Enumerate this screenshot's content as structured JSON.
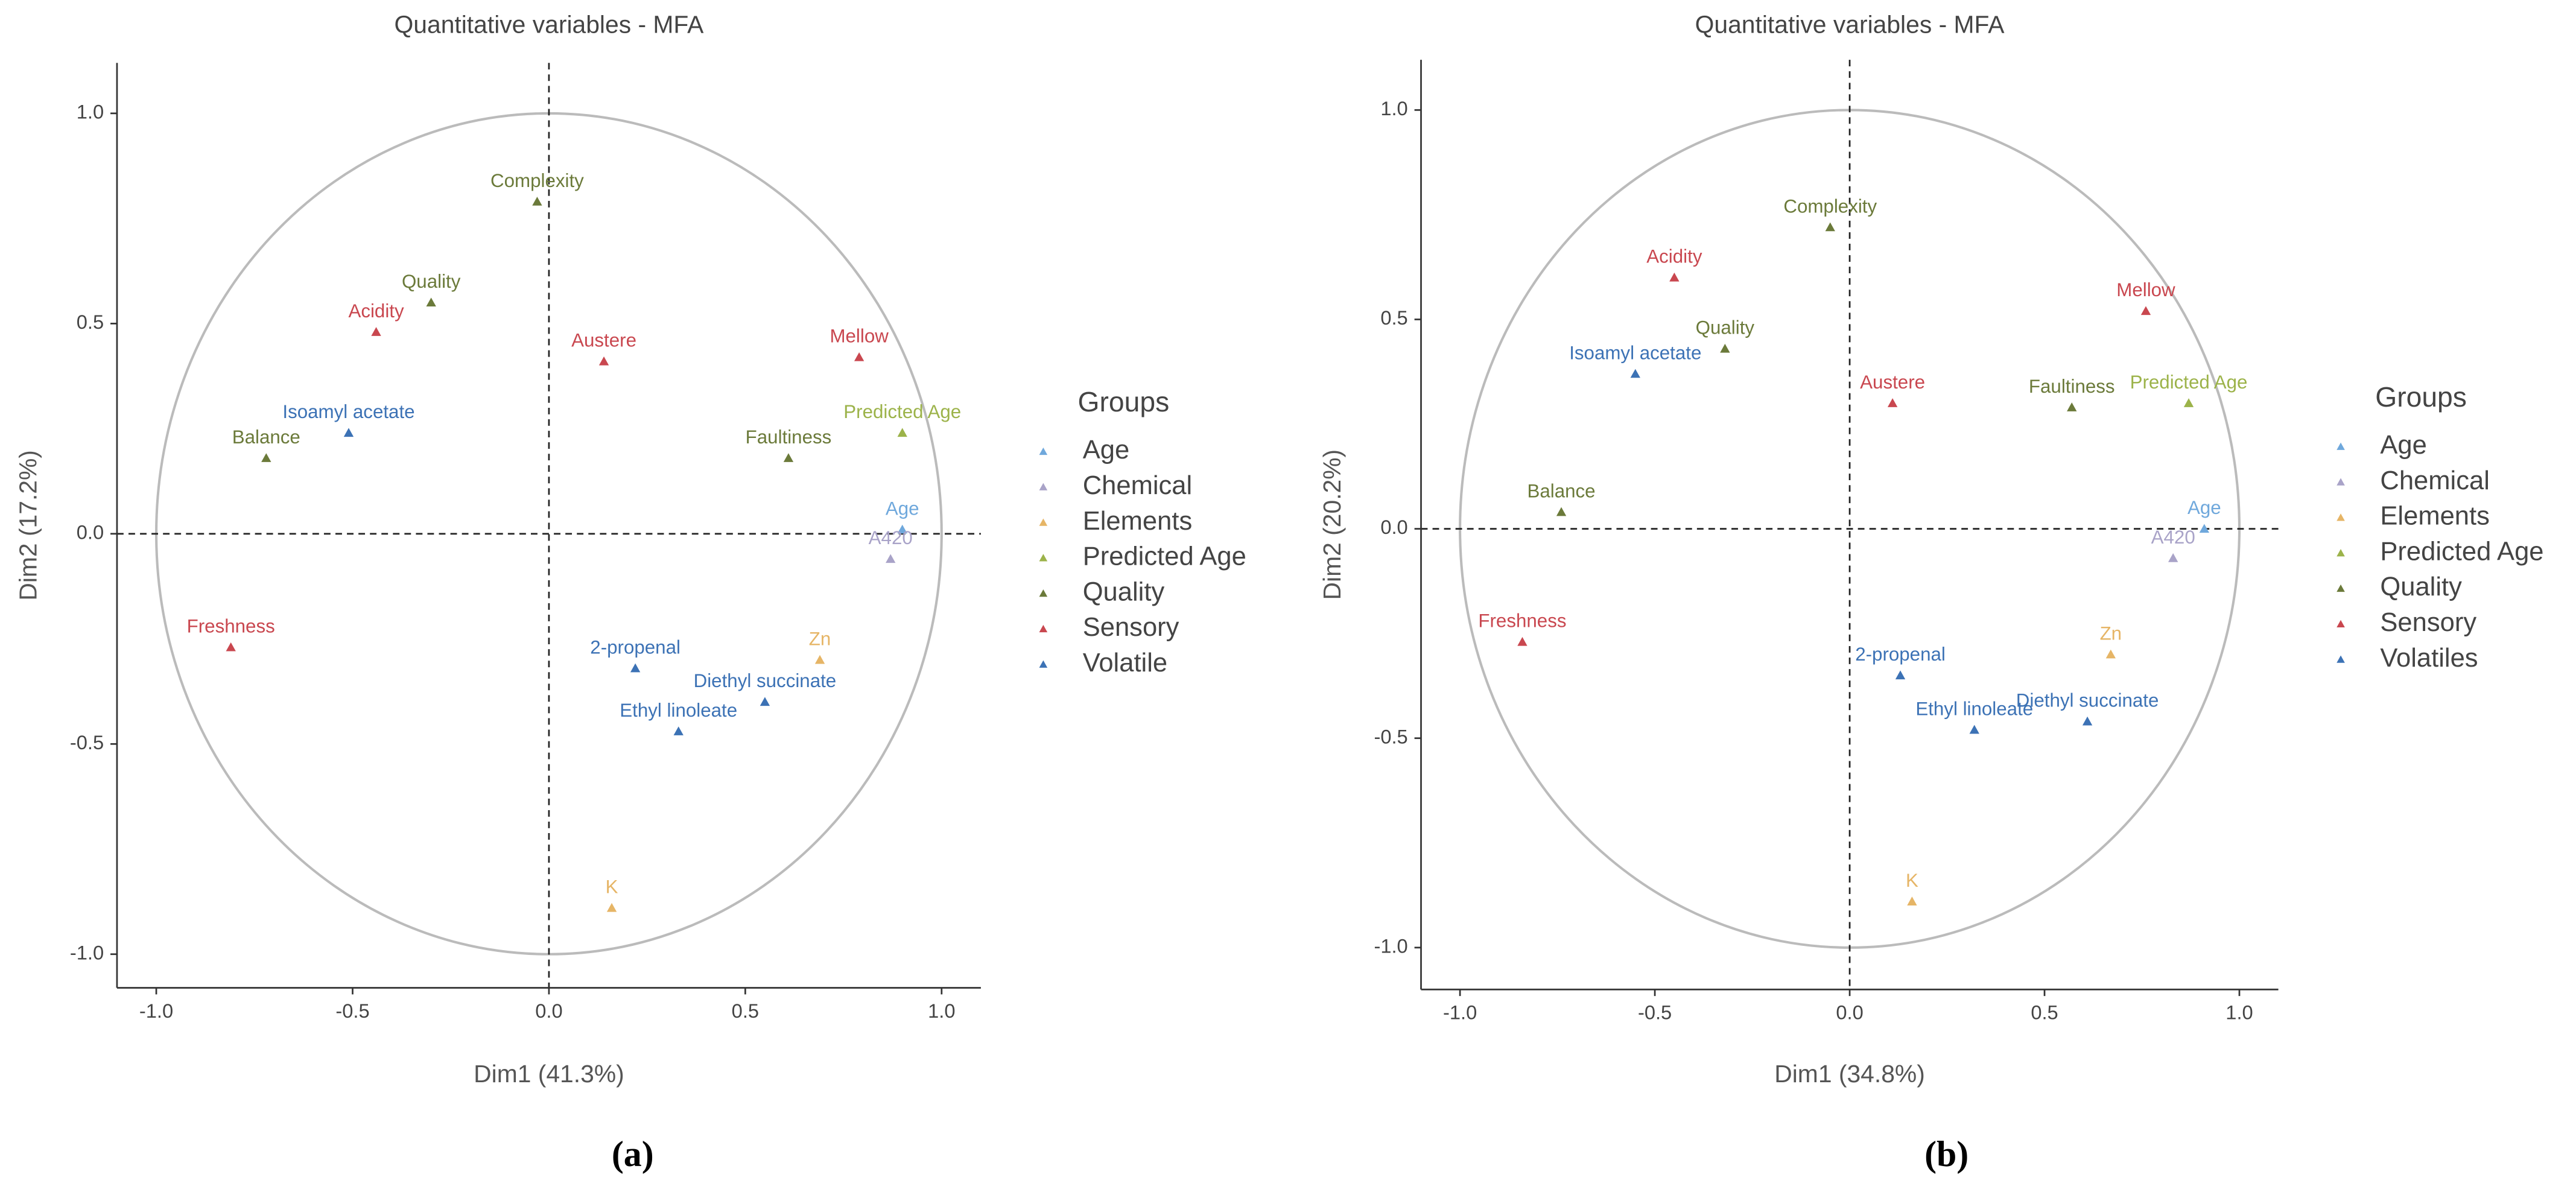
{
  "chart_data": [
    {
      "type": "scatter",
      "title": "Quantitative variables - MFA",
      "xlabel": "Dim1 (41.3%)",
      "ylabel": "Dim2 (17.2%)",
      "caption": "(a)",
      "legend_title": "Groups",
      "xlim": [
        -1.1,
        1.1
      ],
      "ylim": [
        -1.08,
        1.12
      ],
      "xticks": [
        {
          "value": -1,
          "label": "-1.0"
        },
        {
          "value": -0.5,
          "label": "-0.5"
        },
        {
          "value": 0,
          "label": "0.0"
        },
        {
          "value": 0.5,
          "label": "0.5"
        },
        {
          "value": 1,
          "label": "1.0"
        }
      ],
      "yticks": [
        {
          "value": -1,
          "label": "-1.0"
        },
        {
          "value": -0.5,
          "label": "-0.5"
        },
        {
          "value": 0,
          "label": "0.0"
        },
        {
          "value": 0.5,
          "label": "0.5"
        },
        {
          "value": 1,
          "label": "1.0"
        }
      ],
      "series": [
        {
          "name": "Age",
          "color": "#6fa8dc",
          "labels": [
            "Age"
          ],
          "x": [
            0.9
          ],
          "values": [
            0.01
          ]
        },
        {
          "name": "Chemical",
          "color": "#a9a3c8",
          "labels": [
            "A420"
          ],
          "x": [
            0.87
          ],
          "values": [
            -0.06
          ]
        },
        {
          "name": "Elements",
          "color": "#e6b566",
          "labels": [
            "Zn",
            "K"
          ],
          "x": [
            0.69,
            0.16
          ],
          "values": [
            -0.3,
            -0.89
          ]
        },
        {
          "name": "Predicted Age",
          "color": "#9cb34a",
          "labels": [
            "Predicted Age"
          ],
          "x": [
            0.9
          ],
          "values": [
            0.24
          ]
        },
        {
          "name": "Quality",
          "color": "#6b7a3a",
          "labels": [
            "Complexity",
            "Quality",
            "Balance",
            "Faultiness"
          ],
          "x": [
            -0.03,
            -0.3,
            -0.72,
            0.61
          ],
          "values": [
            0.79,
            0.55,
            0.18,
            0.18
          ]
        },
        {
          "name": "Sensory",
          "color": "#c9474f",
          "labels": [
            "Acidity",
            "Austere",
            "Mellow",
            "Freshness"
          ],
          "x": [
            -0.44,
            0.14,
            0.79,
            -0.81
          ],
          "values": [
            0.48,
            0.41,
            0.42,
            -0.27
          ]
        },
        {
          "name": "Volatile",
          "color": "#3c72b5",
          "labels": [
            "Isoamyl acetate",
            "2-propenal",
            "Diethyl succinate",
            "Ethyl linoleate"
          ],
          "x": [
            -0.51,
            0.22,
            0.55,
            0.33
          ],
          "values": [
            0.24,
            -0.32,
            -0.4,
            -0.47
          ]
        }
      ]
    },
    {
      "type": "scatter",
      "title": "Quantitative variables - MFA",
      "xlabel": "Dim1 (34.8%)",
      "ylabel": "Dim2 (20.2%)",
      "caption": "(b)",
      "legend_title": "Groups",
      "xlim": [
        -1.1,
        1.1
      ],
      "ylim": [
        -1.1,
        1.12
      ],
      "xticks": [
        {
          "value": -1,
          "label": "-1.0"
        },
        {
          "value": -0.5,
          "label": "-0.5"
        },
        {
          "value": 0,
          "label": "0.0"
        },
        {
          "value": 0.5,
          "label": "0.5"
        },
        {
          "value": 1,
          "label": "1.0"
        }
      ],
      "yticks": [
        {
          "value": -1,
          "label": "-1.0"
        },
        {
          "value": -0.5,
          "label": "-0.5"
        },
        {
          "value": 0,
          "label": "0.0"
        },
        {
          "value": 0.5,
          "label": "0.5"
        },
        {
          "value": 1,
          "label": "1.0"
        }
      ],
      "series": [
        {
          "name": "Age",
          "color": "#6fa8dc",
          "labels": [
            "Age"
          ],
          "x": [
            0.91
          ],
          "values": [
            0.0
          ]
        },
        {
          "name": "Chemical",
          "color": "#a9a3c8",
          "labels": [
            "A420"
          ],
          "x": [
            0.83
          ],
          "values": [
            -0.07
          ]
        },
        {
          "name": "Elements",
          "color": "#e6b566",
          "labels": [
            "Zn",
            "K"
          ],
          "x": [
            0.67,
            0.16
          ],
          "values": [
            -0.3,
            -0.89
          ]
        },
        {
          "name": "Predicted Age",
          "color": "#9cb34a",
          "labels": [
            "Predicted Age"
          ],
          "x": [
            0.87
          ],
          "values": [
            0.3
          ]
        },
        {
          "name": "Quality",
          "color": "#6b7a3a",
          "labels": [
            "Complexity",
            "Quality",
            "Balance",
            "Faultiness"
          ],
          "x": [
            -0.05,
            -0.32,
            -0.74,
            0.57
          ],
          "values": [
            0.72,
            0.43,
            0.04,
            0.29
          ]
        },
        {
          "name": "Sensory",
          "color": "#c9474f",
          "labels": [
            "Acidity",
            "Austere",
            "Mellow",
            "Freshness"
          ],
          "x": [
            -0.45,
            0.11,
            0.76,
            -0.84
          ],
          "values": [
            0.6,
            0.3,
            0.52,
            -0.27
          ]
        },
        {
          "name": "Volatiles",
          "color": "#3c72b5",
          "labels": [
            "Isoamyl acetate",
            "2-propenal",
            "Diethyl succinate",
            "Ethyl linoleate"
          ],
          "x": [
            -0.55,
            0.13,
            0.61,
            0.32
          ],
          "values": [
            0.37,
            -0.35,
            -0.46,
            -0.48
          ]
        }
      ]
    }
  ]
}
